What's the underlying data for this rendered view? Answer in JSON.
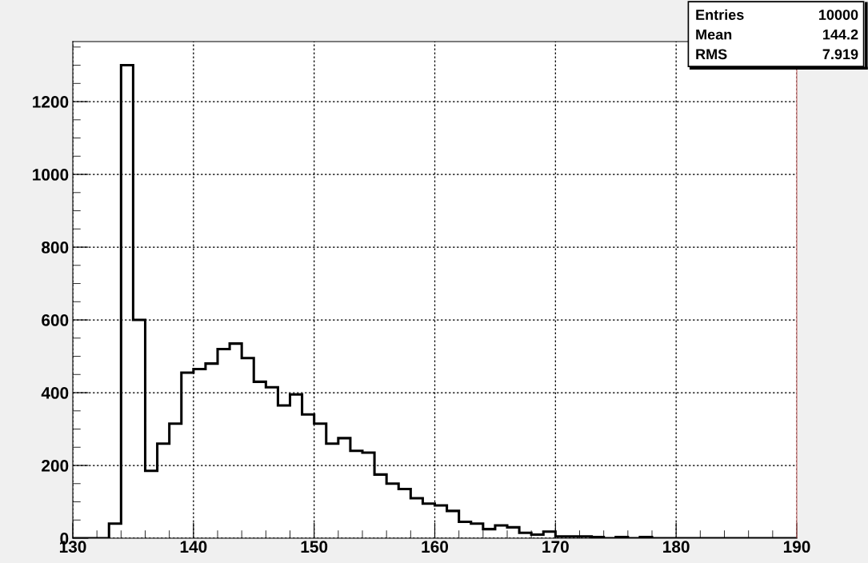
{
  "chart_data": {
    "type": "histogram",
    "bins": [
      130,
      131,
      132,
      133,
      134,
      135,
      136,
      137,
      138,
      139,
      140,
      141,
      142,
      143,
      144,
      145,
      146,
      147,
      148,
      149,
      150,
      151,
      152,
      153,
      154,
      155,
      156,
      157,
      158,
      159,
      160,
      161,
      162,
      163,
      164,
      165,
      166,
      167,
      168,
      169,
      170,
      171,
      172,
      173,
      174,
      175,
      176,
      177,
      178,
      179,
      180,
      181,
      182,
      183,
      184,
      185,
      186,
      187,
      188,
      189,
      190
    ],
    "values": [
      0,
      0,
      0,
      40,
      1300,
      600,
      185,
      260,
      315,
      455,
      465,
      480,
      520,
      535,
      495,
      430,
      415,
      365,
      395,
      340,
      315,
      260,
      275,
      240,
      235,
      175,
      150,
      135,
      110,
      95,
      90,
      75,
      45,
      40,
      25,
      35,
      30,
      15,
      10,
      18,
      5,
      5,
      5,
      3,
      0,
      3,
      0,
      3,
      0,
      0,
      0,
      0,
      0,
      0,
      0,
      0,
      0,
      0,
      0,
      0
    ],
    "color": "#000000",
    "xlim": [
      130,
      190
    ],
    "xticks": [
      130,
      140,
      150,
      160,
      170,
      180,
      190
    ],
    "ylim": [
      0,
      1365
    ],
    "yticks": [
      0,
      200,
      400,
      600,
      800,
      1000,
      1200
    ],
    "grid": true,
    "annotations": [
      "Entries",
      "10000",
      "Mean",
      "144.2",
      "RMS",
      "7.919"
    ]
  }
}
